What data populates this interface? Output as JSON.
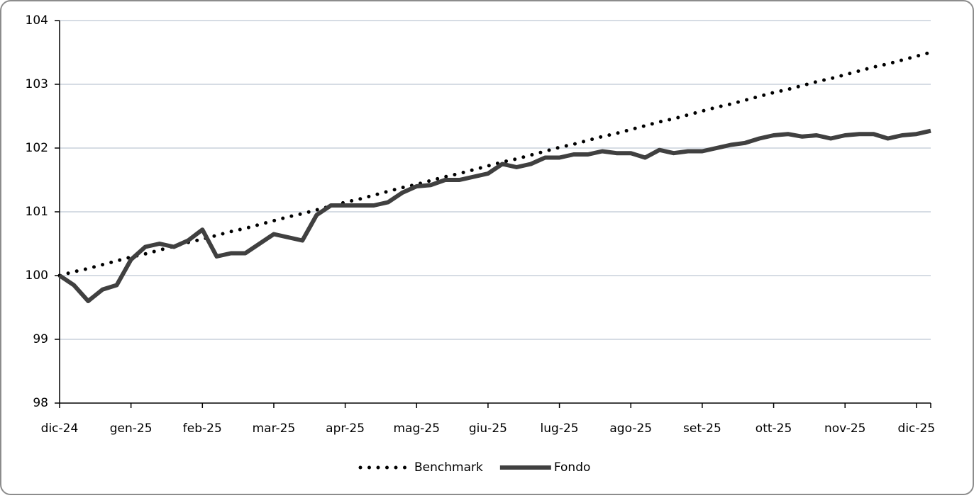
{
  "chart_data": {
    "type": "line",
    "categories": [
      "dic-24",
      null,
      null,
      null,
      null,
      "gen-25",
      null,
      null,
      null,
      null,
      "feb-25",
      null,
      null,
      null,
      null,
      "mar-25",
      null,
      null,
      null,
      null,
      "apr-25",
      null,
      null,
      null,
      null,
      "mag-25",
      null,
      null,
      null,
      null,
      "giu-25",
      null,
      null,
      null,
      null,
      "lug-25",
      null,
      null,
      null,
      null,
      "ago-25",
      null,
      null,
      null,
      null,
      "set-25",
      null,
      null,
      null,
      null,
      "ott-25",
      null,
      null,
      null,
      null,
      "nov-25",
      null,
      null,
      null,
      null,
      "dic-25",
      null
    ],
    "series": [
      {
        "name": "Benchmark",
        "color": "#000000",
        "style": "dotted",
        "values": [
          100,
          100.06,
          100.11,
          100.17,
          100.23,
          100.29,
          100.34,
          100.4,
          100.46,
          100.52,
          100.57,
          100.63,
          100.69,
          100.74,
          100.8,
          100.86,
          100.92,
          100.97,
          101.03,
          101.09,
          101.15,
          101.2,
          101.26,
          101.32,
          101.38,
          101.43,
          101.49,
          101.55,
          101.6,
          101.66,
          101.72,
          101.78,
          101.83,
          101.89,
          101.95,
          102.01,
          102.06,
          102.12,
          102.18,
          102.23,
          102.29,
          102.35,
          102.41,
          102.46,
          102.52,
          102.58,
          102.64,
          102.69,
          102.75,
          102.81,
          102.87,
          102.92,
          102.98,
          103.04,
          103.09,
          103.15,
          103.21,
          103.27,
          103.32,
          103.38,
          103.44,
          103.5
        ]
      },
      {
        "name": "Fondo",
        "color": "#404040",
        "style": "solid",
        "values": [
          100.0,
          99.85,
          99.6,
          99.78,
          99.85,
          100.25,
          100.45,
          100.5,
          100.45,
          100.55,
          100.72,
          100.3,
          100.35,
          100.35,
          100.5,
          100.65,
          100.6,
          100.55,
          100.95,
          101.1,
          101.1,
          101.1,
          101.1,
          101.15,
          101.3,
          101.4,
          101.42,
          101.5,
          101.5,
          101.55,
          101.6,
          101.75,
          101.7,
          101.75,
          101.85,
          101.85,
          101.9,
          101.9,
          101.95,
          101.92,
          101.92,
          101.85,
          101.97,
          101.92,
          101.95,
          101.95,
          102.0,
          102.05,
          102.08,
          102.15,
          102.2,
          102.22,
          102.18,
          102.2,
          102.15,
          102.2,
          102.22,
          102.22,
          102.15,
          102.2,
          102.22,
          102.27
        ]
      }
    ],
    "ylim": [
      98,
      104
    ],
    "yticks": [
      98,
      99,
      100,
      101,
      102,
      103,
      104
    ],
    "grid": true,
    "legend": "bottom"
  }
}
